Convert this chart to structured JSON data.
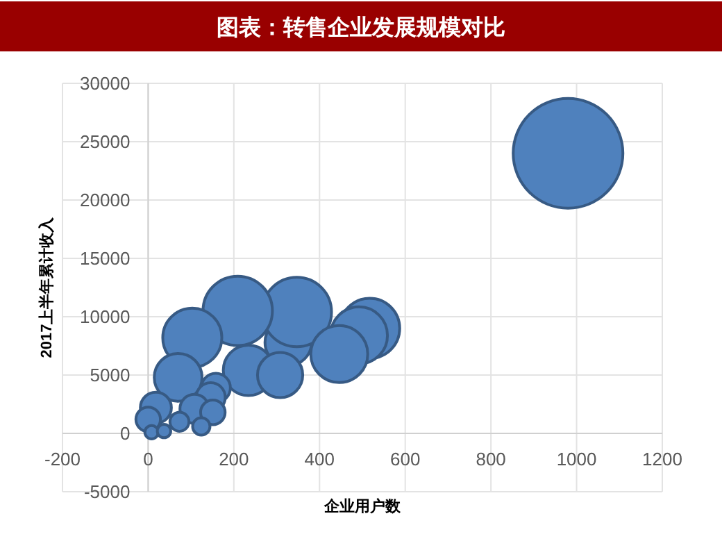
{
  "chart_data": {
    "type": "bubble",
    "title": "图表：转售企业发展规模对比",
    "xlabel": "企业用户数",
    "ylabel": "2017上半年累计收入",
    "x": [
      980,
      327,
      347,
      209,
      103,
      517,
      492,
      446,
      234,
      308,
      70,
      18,
      158,
      146,
      108,
      151,
      0,
      73,
      124,
      8,
      37
    ],
    "values": [
      24000,
      7800,
      10400,
      10500,
      8200,
      9000,
      8400,
      6800,
      5400,
      5000,
      4800,
      2200,
      3900,
      3100,
      2100,
      1800,
      1200,
      1000,
      600,
      100,
      200
    ],
    "sizes": [
      1,
      0.18,
      0.4,
      0.4,
      0.29,
      0.3,
      0.27,
      0.27,
      0.21,
      0.17,
      0.19,
      0.08,
      0.07,
      0.07,
      0.07,
      0.05,
      0.05,
      0.03,
      0.025,
      0.015,
      0.015
    ],
    "color": "#4f81bd",
    "xlim": [
      -200,
      1200
    ],
    "xticks": [
      -200,
      0,
      200,
      400,
      600,
      800,
      1000,
      1200
    ],
    "ylim": [
      -5000,
      30000
    ],
    "yticks": [
      -5000,
      0,
      5000,
      10000,
      15000,
      20000,
      25000,
      30000
    ],
    "grid": true
  }
}
